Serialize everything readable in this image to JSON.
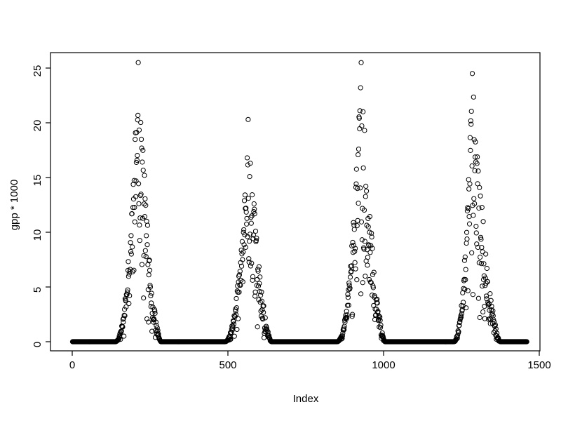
{
  "window": {
    "background_color": "#ffffff",
    "foreground_color": "#000000"
  },
  "chart_data": {
    "type": "scatter",
    "title": "",
    "xlabel": "Index",
    "ylabel": "gpp * 1000",
    "xlim": [
      0,
      1500
    ],
    "ylim": [
      0,
      25.5
    ],
    "x_ticks": [
      0,
      500,
      1000,
      1500
    ],
    "y_ticks": [
      0,
      5,
      10,
      15,
      20,
      25
    ],
    "grid": false,
    "legend": null,
    "marker": {
      "shape": "open-circle",
      "color": "#000000",
      "radius_px": 3.1
    },
    "n_points": 1460,
    "baseline_value": 0,
    "pattern_note": "Daily-style series with four growing-season peaks separated by long runs of exact zeros along the baseline",
    "seasons": [
      {
        "start": 138,
        "peak": 212,
        "end": 285,
        "max": 25.5
      },
      {
        "start": 490,
        "peak": 565,
        "end": 640,
        "max": 20.3
      },
      {
        "start": 850,
        "peak": 928,
        "end": 1005,
        "max": 25.5
      },
      {
        "start": 1225,
        "peak": 1285,
        "end": 1375,
        "max": 24.5
      }
    ],
    "rng_seed": 42
  }
}
